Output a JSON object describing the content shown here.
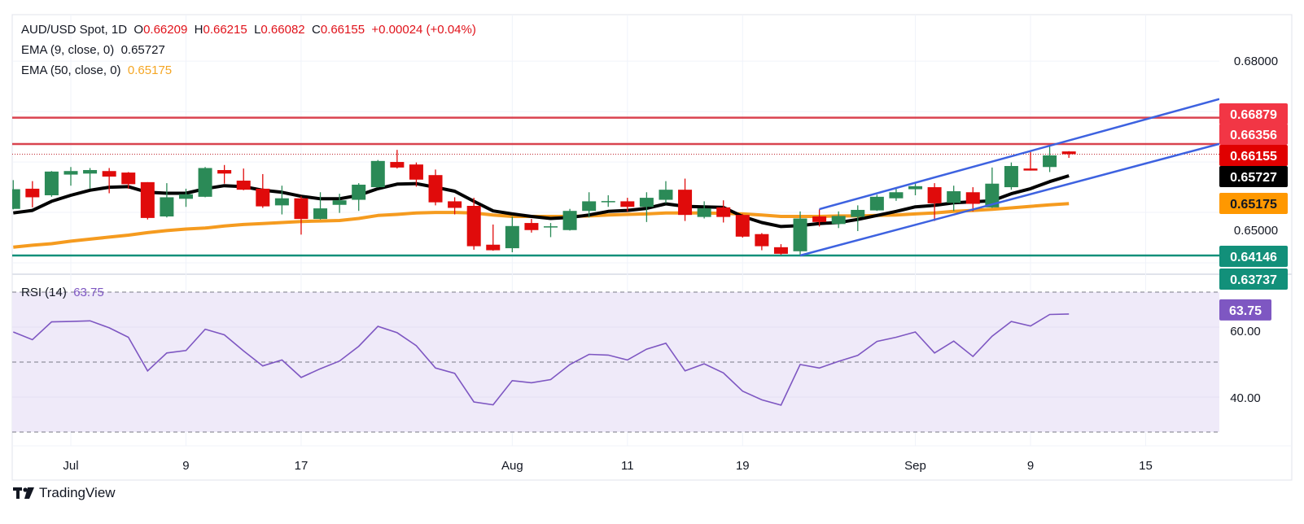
{
  "header": {
    "symbol": "AUD/USD Spot, 1D",
    "o_label": "O",
    "o": "0.66209",
    "h_label": "H",
    "h": "0.66215",
    "l_label": "L",
    "l": "0.66082",
    "c_label": "C",
    "c": "0.66155",
    "change": "+0.00024 (+0.04%)"
  },
  "indicators": {
    "ema9": {
      "label": "EMA (9, close, 0)",
      "value": "0.65727",
      "color": "#000000"
    },
    "ema50": {
      "label": "EMA (50, close, 0)",
      "value": "0.65175",
      "color": "#f59b1f"
    },
    "rsi": {
      "label": "RSI (14)",
      "value": "63.75",
      "color": "#7e57c2"
    }
  },
  "brand": {
    "name": "TradingView"
  },
  "colors": {
    "up": "#2b8a57",
    "down": "#e00b0b",
    "resistance": "#d9434f",
    "support": "#12907a",
    "channel": "#3d62e0",
    "rsi_fill": "#efeaf9"
  },
  "chart_data": {
    "type": "candlestick",
    "symbol": "AUD/USD",
    "interval": "1D",
    "price_ticks": [
      "0.68000",
      "0.65000"
    ],
    "price_tick_values": [
      0.68,
      0.65
    ],
    "grid": true,
    "time_ticks": [
      {
        "label": "Jul",
        "date": "Jul 1"
      },
      {
        "label": "9",
        "date": "Jul 9"
      },
      {
        "label": "17",
        "date": "Jul 17"
      },
      {
        "label": "Aug",
        "date": "Aug 1"
      },
      {
        "label": "11",
        "date": "Aug 11"
      },
      {
        "label": "19",
        "date": "Aug 19"
      },
      {
        "label": "Sep",
        "date": "Sep 1"
      },
      {
        "label": "9",
        "date": "Sep 9"
      },
      {
        "label": "15",
        "date": "Sep 15"
      }
    ],
    "candles": [
      {
        "date": "Jun 26",
        "o": 0.6507,
        "h": 0.6564,
        "l": 0.6506,
        "c": 0.6546
      },
      {
        "date": "Jun 27",
        "o": 0.6547,
        "h": 0.6562,
        "l": 0.651,
        "c": 0.653
      },
      {
        "date": "Jun 30",
        "o": 0.6534,
        "h": 0.6582,
        "l": 0.6531,
        "c": 0.6581
      },
      {
        "date": "Jul 1",
        "o": 0.6575,
        "h": 0.659,
        "l": 0.6553,
        "c": 0.6582
      },
      {
        "date": "Jul 2",
        "o": 0.6577,
        "h": 0.6588,
        "l": 0.6547,
        "c": 0.6584
      },
      {
        "date": "Jul 3",
        "o": 0.6582,
        "h": 0.6588,
        "l": 0.6538,
        "c": 0.6571
      },
      {
        "date": "Jul 4",
        "o": 0.6579,
        "h": 0.658,
        "l": 0.6547,
        "c": 0.6556
      },
      {
        "date": "Jul 7",
        "o": 0.656,
        "h": 0.656,
        "l": 0.6486,
        "c": 0.6489
      },
      {
        "date": "Jul 8",
        "o": 0.6492,
        "h": 0.6558,
        "l": 0.649,
        "c": 0.653
      },
      {
        "date": "Jul 9",
        "o": 0.6527,
        "h": 0.6547,
        "l": 0.6511,
        "c": 0.6536
      },
      {
        "date": "Jul 10",
        "o": 0.6531,
        "h": 0.659,
        "l": 0.653,
        "c": 0.6588
      },
      {
        "date": "Jul 11",
        "o": 0.6584,
        "h": 0.6594,
        "l": 0.6557,
        "c": 0.6577
      },
      {
        "date": "Jul 14",
        "o": 0.6563,
        "h": 0.6587,
        "l": 0.6544,
        "c": 0.6545
      },
      {
        "date": "Jul 15",
        "o": 0.6547,
        "h": 0.6576,
        "l": 0.6509,
        "c": 0.6512
      },
      {
        "date": "Jul 16",
        "o": 0.6514,
        "h": 0.6553,
        "l": 0.6496,
        "c": 0.6528
      },
      {
        "date": "Jul 17",
        "o": 0.6528,
        "h": 0.6532,
        "l": 0.6456,
        "c": 0.6487
      },
      {
        "date": "Jul 18",
        "o": 0.6487,
        "h": 0.654,
        "l": 0.6486,
        "c": 0.6508
      },
      {
        "date": "Jul 21",
        "o": 0.6515,
        "h": 0.6537,
        "l": 0.6499,
        "c": 0.6524
      },
      {
        "date": "Jul 22",
        "o": 0.6525,
        "h": 0.6558,
        "l": 0.6503,
        "c": 0.6555
      },
      {
        "date": "Jul 23",
        "o": 0.655,
        "h": 0.6604,
        "l": 0.6549,
        "c": 0.6602
      },
      {
        "date": "Jul 24",
        "o": 0.66,
        "h": 0.6624,
        "l": 0.6587,
        "c": 0.6589
      },
      {
        "date": "Jul 25",
        "o": 0.6595,
        "h": 0.6599,
        "l": 0.6551,
        "c": 0.6565
      },
      {
        "date": "Jul 28",
        "o": 0.6574,
        "h": 0.6585,
        "l": 0.6514,
        "c": 0.652
      },
      {
        "date": "Jul 29",
        "o": 0.6522,
        "h": 0.653,
        "l": 0.6496,
        "c": 0.6509
      },
      {
        "date": "Jul 30",
        "o": 0.6513,
        "h": 0.6529,
        "l": 0.6426,
        "c": 0.6433
      },
      {
        "date": "Jul 31",
        "o": 0.6436,
        "h": 0.6476,
        "l": 0.6424,
        "c": 0.6425
      },
      {
        "date": "Aug 1",
        "o": 0.6429,
        "h": 0.6492,
        "l": 0.6421,
        "c": 0.6473
      },
      {
        "date": "Aug 4",
        "o": 0.6479,
        "h": 0.6487,
        "l": 0.646,
        "c": 0.6465
      },
      {
        "date": "Aug 5",
        "o": 0.6472,
        "h": 0.6479,
        "l": 0.6451,
        "c": 0.64725
      },
      {
        "date": "Aug 6",
        "o": 0.6465,
        "h": 0.6507,
        "l": 0.6464,
        "c": 0.6503
      },
      {
        "date": "Aug 7",
        "o": 0.6503,
        "h": 0.654,
        "l": 0.649,
        "c": 0.6522
      },
      {
        "date": "Aug 8",
        "o": 0.6522,
        "h": 0.6534,
        "l": 0.6511,
        "c": 0.65225
      },
      {
        "date": "Aug 11",
        "o": 0.6522,
        "h": 0.6529,
        "l": 0.6502,
        "c": 0.6511
      },
      {
        "date": "Aug 12",
        "o": 0.6511,
        "h": 0.654,
        "l": 0.6481,
        "c": 0.6529
      },
      {
        "date": "Aug 13",
        "o": 0.6525,
        "h": 0.6562,
        "l": 0.6518,
        "c": 0.6545
      },
      {
        "date": "Aug 14",
        "o": 0.6545,
        "h": 0.6567,
        "l": 0.6483,
        "c": 0.6495
      },
      {
        "date": "Aug 15",
        "o": 0.6491,
        "h": 0.6522,
        "l": 0.6488,
        "c": 0.6508
      },
      {
        "date": "Aug 18",
        "o": 0.651,
        "h": 0.6524,
        "l": 0.648,
        "c": 0.6491
      },
      {
        "date": "Aug 19",
        "o": 0.6495,
        "h": 0.6497,
        "l": 0.645,
        "c": 0.6452
      },
      {
        "date": "Aug 20",
        "o": 0.6457,
        "h": 0.6459,
        "l": 0.6425,
        "c": 0.6433
      },
      {
        "date": "Aug 21",
        "o": 0.6431,
        "h": 0.6437,
        "l": 0.6416,
        "c": 0.6418
      },
      {
        "date": "Aug 22",
        "o": 0.6423,
        "h": 0.6502,
        "l": 0.64146,
        "c": 0.6488
      },
      {
        "date": "Aug 25",
        "o": 0.6492,
        "h": 0.6506,
        "l": 0.6472,
        "c": 0.6481
      },
      {
        "date": "Aug 26",
        "o": 0.6477,
        "h": 0.6502,
        "l": 0.6469,
        "c": 0.6493
      },
      {
        "date": "Aug 27",
        "o": 0.6491,
        "h": 0.6514,
        "l": 0.6463,
        "c": 0.6505
      },
      {
        "date": "Aug 28",
        "o": 0.6504,
        "h": 0.6535,
        "l": 0.6503,
        "c": 0.6531
      },
      {
        "date": "Aug 29",
        "o": 0.6528,
        "h": 0.6547,
        "l": 0.6523,
        "c": 0.654
      },
      {
        "date": "Sep 1",
        "o": 0.6546,
        "h": 0.6558,
        "l": 0.6534,
        "c": 0.6552
      },
      {
        "date": "Sep 2",
        "o": 0.655,
        "h": 0.6558,
        "l": 0.6483,
        "c": 0.6518
      },
      {
        "date": "Sep 3",
        "o": 0.6519,
        "h": 0.6553,
        "l": 0.6503,
        "c": 0.6542
      },
      {
        "date": "Sep 4",
        "o": 0.654,
        "h": 0.655,
        "l": 0.6502,
        "c": 0.6517
      },
      {
        "date": "Sep 5",
        "o": 0.651,
        "h": 0.6589,
        "l": 0.6509,
        "c": 0.6557
      },
      {
        "date": "Sep 8",
        "o": 0.655,
        "h": 0.6599,
        "l": 0.6545,
        "c": 0.6592
      },
      {
        "date": "Sep 9",
        "o": 0.6587,
        "h": 0.662,
        "l": 0.6583,
        "c": 0.6583
      },
      {
        "date": "Sep 10",
        "o": 0.659,
        "h": 0.6631,
        "l": 0.658,
        "c": 0.6613
      },
      {
        "date": "Sep 11",
        "o": 0.66209,
        "h": 0.66215,
        "l": 0.66082,
        "c": 0.66155
      }
    ],
    "ema9": [
      0.6499,
      0.6504,
      0.6522,
      0.6534,
      0.6544,
      0.655,
      0.6551,
      0.654,
      0.6538,
      0.6538,
      0.6547,
      0.6553,
      0.6551,
      0.6544,
      0.654,
      0.6532,
      0.6527,
      0.6527,
      0.6534,
      0.6547,
      0.6556,
      0.6557,
      0.655,
      0.6542,
      0.6522,
      0.6503,
      0.6497,
      0.6492,
      0.6488,
      0.649,
      0.6495,
      0.6502,
      0.6504,
      0.6508,
      0.6517,
      0.6512,
      0.6511,
      0.651,
      0.6492,
      0.648,
      0.6472,
      0.6474,
      0.6478,
      0.648,
      0.6486,
      0.6494,
      0.6502,
      0.6511,
      0.6514,
      0.6519,
      0.6521,
      0.6523,
      0.6537,
      0.6547,
      0.6561,
      0.65727
    ],
    "ema50": [
      0.6431,
      0.6435,
      0.6438,
      0.6443,
      0.6447,
      0.6451,
      0.6455,
      0.646,
      0.6464,
      0.6467,
      0.6469,
      0.6473,
      0.6476,
      0.6478,
      0.648,
      0.6482,
      0.6483,
      0.6484,
      0.6488,
      0.6494,
      0.6496,
      0.6499,
      0.65,
      0.65,
      0.6499,
      0.6495,
      0.6492,
      0.6492,
      0.6492,
      0.6492,
      0.6493,
      0.6495,
      0.6496,
      0.6497,
      0.6499,
      0.6499,
      0.6499,
      0.6498,
      0.6497,
      0.6495,
      0.6492,
      0.6492,
      0.6492,
      0.6493,
      0.6493,
      0.6494,
      0.6495,
      0.6497,
      0.6499,
      0.6502,
      0.6504,
      0.6506,
      0.6509,
      0.6512,
      0.6515,
      0.65175
    ],
    "rsi": [
      58.6,
      56.4,
      61.5,
      61.6,
      61.8,
      59.8,
      57.1,
      47.5,
      52.6,
      53.3,
      59.4,
      57.8,
      53.2,
      48.9,
      50.6,
      45.6,
      48.1,
      50.3,
      54.5,
      60.2,
      58.4,
      54.7,
      48.3,
      46.8,
      38.6,
      37.8,
      44.7,
      44.1,
      45.0,
      49.3,
      52.2,
      52.0,
      50.6,
      53.7,
      55.4,
      47.5,
      49.5,
      46.9,
      41.7,
      39.2,
      37.7,
      49.3,
      48.3,
      50.2,
      51.9,
      55.9,
      57.1,
      58.6,
      52.6,
      56.0,
      51.6,
      57.4,
      61.6,
      60.3,
      63.6,
      63.75
    ],
    "rsi_levels": [
      70,
      50,
      30
    ],
    "rsi_ticks": [
      "60.00",
      "40.00"
    ],
    "rsi_tick_values": [
      60,
      40
    ],
    "horizontal_levels": [
      {
        "price": 0.66879,
        "label": "0.66879",
        "kind": "resistance"
      },
      {
        "price": 0.66356,
        "label": "0.66356",
        "kind": "resistance"
      },
      {
        "price": 0.64146,
        "label": "0.64146",
        "kind": "support"
      }
    ],
    "last_price": {
      "price": 0.66155,
      "label": "0.66155"
    },
    "hidden_label": "0.63737",
    "channel": {
      "upper": [
        {
          "date": "Aug 25",
          "price": 0.65065
        },
        {
          "date": "Sep 9",
          "price": 0.66217
        }
      ],
      "lower": [
        {
          "date": "Aug 22",
          "price": 0.64146
        },
        {
          "date": "Sep 9",
          "price": 0.65362
        }
      ]
    }
  }
}
